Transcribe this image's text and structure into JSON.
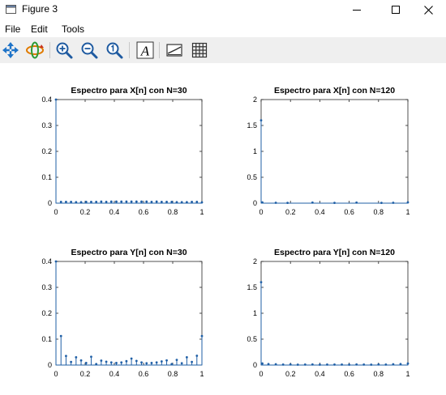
{
  "window": {
    "title": "Figure 3",
    "controls": {
      "minimize": "minimize",
      "maximize": "maximize",
      "close": "close"
    }
  },
  "menu": {
    "items": [
      "File",
      "Edit",
      "Tools"
    ]
  },
  "toolbar": {
    "tools": [
      "pan-icon",
      "rotate-icon",
      "zoom-in-icon",
      "zoom-out-icon",
      "zoom-reset-icon",
      "text-icon",
      "legend-icon",
      "grid-icon"
    ],
    "text_glyph": "A"
  },
  "chart_data": [
    {
      "type": "stem",
      "title": "Espectro para X[n] con N=30",
      "xlim": [
        0,
        1
      ],
      "ylim": [
        0,
        0.4
      ],
      "xticks": [
        "0",
        "0.2",
        "0.4",
        "0.6",
        "0.8",
        "1"
      ],
      "yticks": [
        "0",
        "0.1",
        "0.2",
        "0.3",
        "0.4"
      ],
      "x": [
        0,
        0.0345,
        0.069,
        0.1034,
        0.1379,
        0.1724,
        0.2069,
        0.2414,
        0.2759,
        0.3103,
        0.3448,
        0.3793,
        0.4138,
        0.4483,
        0.4828,
        0.5172,
        0.5517,
        0.5862,
        0.6207,
        0.6552,
        0.6897,
        0.7241,
        0.7586,
        0.7931,
        0.8276,
        0.8621,
        0.8966,
        0.931,
        0.9655,
        1
      ],
      "y": [
        0.4,
        0.005,
        0.005,
        0.005,
        0.004,
        0.004,
        0.005,
        0.005,
        0.005,
        0.006,
        0.005,
        0.006,
        0.006,
        0.006,
        0.006,
        0.006,
        0.006,
        0.006,
        0.006,
        0.005,
        0.006,
        0.005,
        0.005,
        0.005,
        0.004,
        0.004,
        0.004,
        0.005,
        0.005,
        0.003
      ]
    },
    {
      "type": "stem",
      "title": "Espectro para X[n] con N=120",
      "xlim": [
        0,
        1
      ],
      "ylim": [
        0,
        2
      ],
      "xticks": [
        "0",
        "0.2",
        "0.4",
        "0.6",
        "0.8",
        "1"
      ],
      "yticks": [
        "0",
        "0.5",
        "1",
        "1.5",
        "2"
      ],
      "x": [
        0,
        0.0084,
        0.1,
        0.18,
        0.35,
        0.5,
        0.65,
        0.82,
        0.9,
        1
      ],
      "y": [
        1.6,
        0.015,
        0.008,
        0.006,
        0.012,
        0.006,
        0.012,
        0.006,
        0.008,
        0.015
      ]
    },
    {
      "type": "stem",
      "title": "Espectro para Y[n] con N=30",
      "xlim": [
        0,
        1
      ],
      "ylim": [
        0,
        0.4
      ],
      "xticks": [
        "0",
        "0.2",
        "0.4",
        "0.6",
        "0.8",
        "1"
      ],
      "yticks": [
        "0",
        "0.1",
        "0.2",
        "0.3",
        "0.4"
      ],
      "x": [
        0,
        0.0345,
        0.069,
        0.1034,
        0.1379,
        0.1724,
        0.2069,
        0.2414,
        0.2759,
        0.3103,
        0.3448,
        0.3793,
        0.4138,
        0.4483,
        0.4828,
        0.5172,
        0.5517,
        0.5862,
        0.6207,
        0.6552,
        0.6897,
        0.7241,
        0.7586,
        0.7931,
        0.8276,
        0.8621,
        0.8966,
        0.931,
        0.9655,
        1
      ],
      "y": [
        0.4,
        0.112,
        0.035,
        0.012,
        0.03,
        0.018,
        0.008,
        0.032,
        0.004,
        0.017,
        0.013,
        0.01,
        0.008,
        0.01,
        0.015,
        0.025,
        0.016,
        0.01,
        0.007,
        0.008,
        0.01,
        0.014,
        0.018,
        0.004,
        0.02,
        0.007,
        0.03,
        0.012,
        0.036,
        0.112
      ]
    },
    {
      "type": "stem",
      "title": "Espectro para Y[n] con N=120",
      "xlim": [
        0,
        1
      ],
      "ylim": [
        0,
        2
      ],
      "xticks": [
        "0",
        "0.2",
        "0.4",
        "0.6",
        "0.8",
        "1"
      ],
      "yticks": [
        "0",
        "0.5",
        "1",
        "1.5",
        "2"
      ],
      "x": [
        0,
        0.0084,
        0.05,
        0.1,
        0.15,
        0.2,
        0.25,
        0.3,
        0.35,
        0.4,
        0.45,
        0.5,
        0.55,
        0.6,
        0.65,
        0.7,
        0.75,
        0.8,
        0.85,
        0.9,
        0.95,
        1
      ],
      "y": [
        1.6,
        0.03,
        0.02,
        0.015,
        0.01,
        0.012,
        0.008,
        0.01,
        0.012,
        0.008,
        0.01,
        0.01,
        0.01,
        0.008,
        0.012,
        0.01,
        0.008,
        0.012,
        0.01,
        0.015,
        0.02,
        0.03
      ]
    }
  ],
  "colors": {
    "stem": "#1f5fa6",
    "axes": "#262626",
    "toolbar_bg": "#efefef"
  }
}
